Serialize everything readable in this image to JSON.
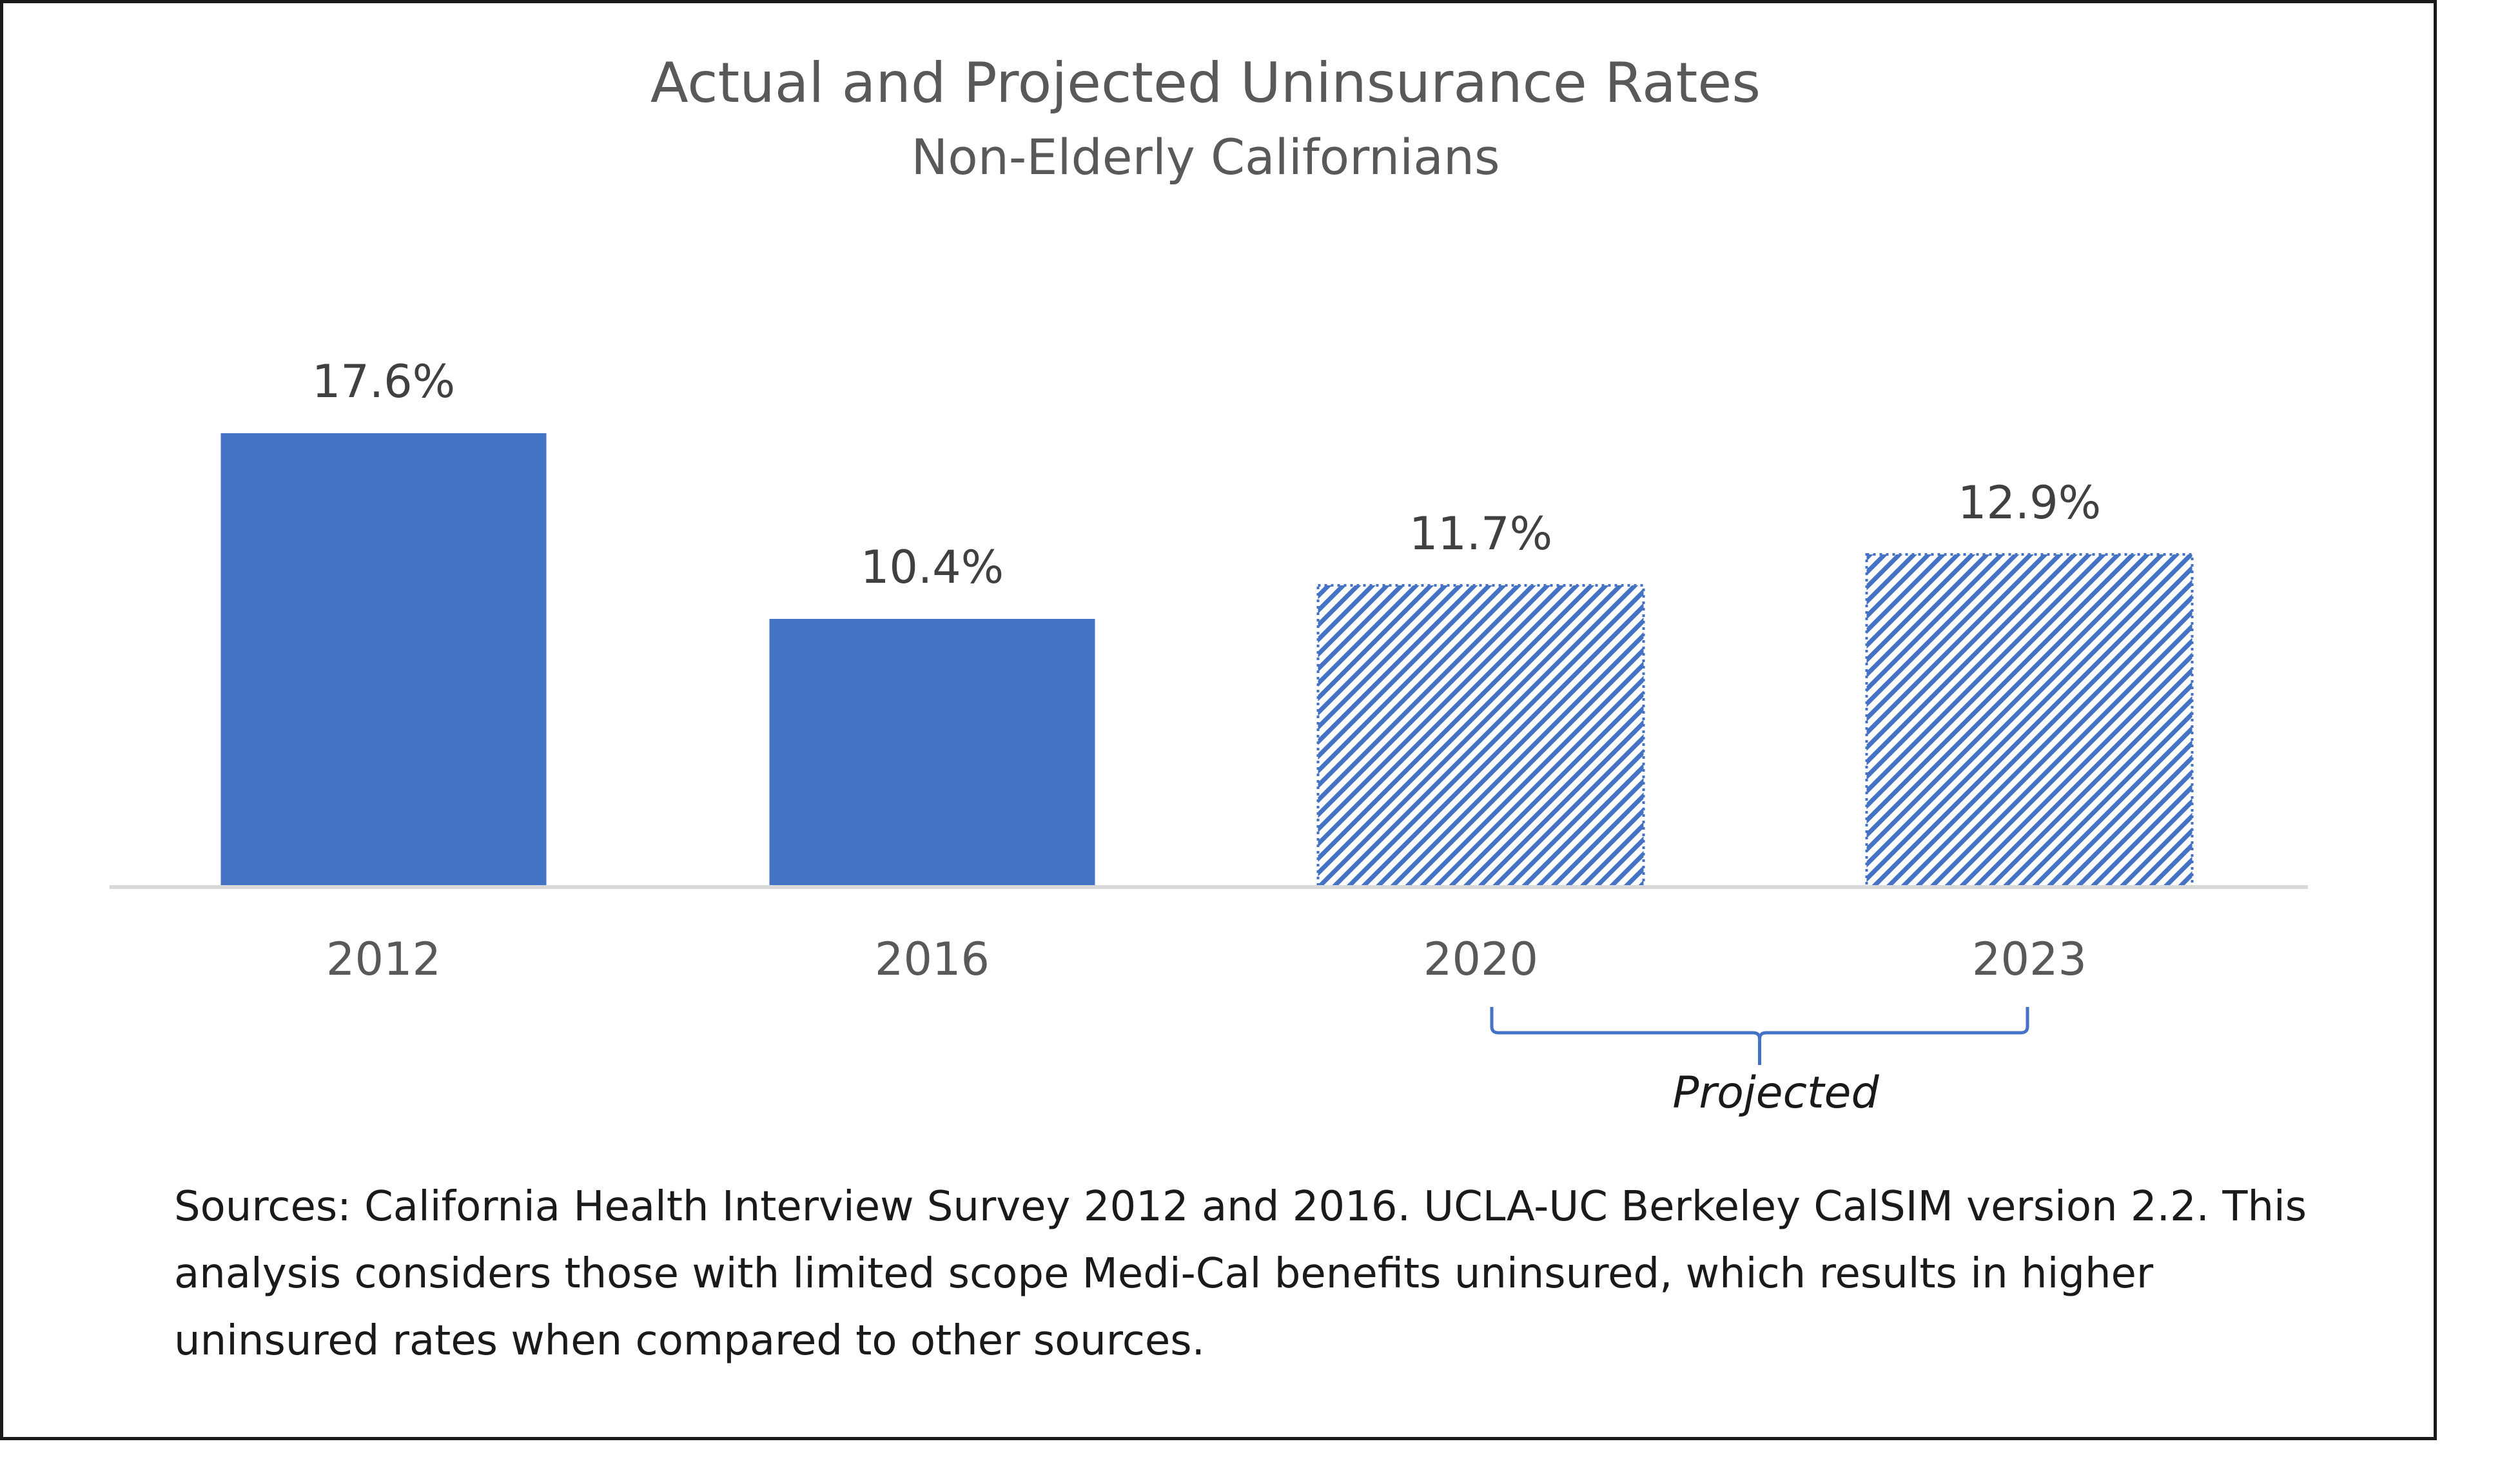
{
  "chart_data": {
    "type": "bar",
    "title": "Actual and Projected Uninsurance Rates",
    "subtitle": "Non-Elderly Californians",
    "categories": [
      "2012",
      "2016",
      "2020",
      "2023"
    ],
    "values": [
      17.6,
      10.4,
      11.7,
      12.9
    ],
    "data_labels": [
      "17.6%",
      "10.4%",
      "11.7%",
      "12.9%"
    ],
    "projected": [
      false,
      false,
      true,
      true
    ],
    "xlabel": "",
    "ylabel": "",
    "ylim": [
      0,
      17.6
    ],
    "grid": false,
    "legend": "none",
    "colors": {
      "actual": "#4472C4",
      "projected_pattern": "#4472C4",
      "axis": "#D9D9D9",
      "bracket": "#4472C4"
    },
    "annotations": [
      {
        "text": "Projected",
        "spans": [
          "2020",
          "2023"
        ],
        "style": "italic"
      }
    ]
  },
  "footer": {
    "sources": "Sources: California Health Interview Survey 2012 and 2016. UCLA-UC Berkeley CalSIM version 2.2. This analysis considers those with limited scope Medi-Cal benefits uninsured, which results in higher uninsured rates when compared to other sources."
  }
}
